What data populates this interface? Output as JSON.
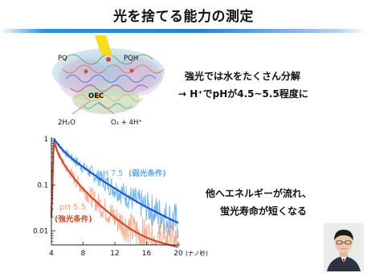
{
  "slide": {
    "title": "光を捨てる能力の測定",
    "note1_line1": "強光では水をたくさん分解",
    "note1_line2": "→ H⁺でpHが4.5~5.5程度に",
    "note2_line1": "他へエネルギーが流れ、",
    "note2_line2": "蛍光寿命が短くなる"
  },
  "diagram": {
    "labels": [
      "PQ",
      "PQH",
      "OEC",
      "2H₂O",
      "O₂ + 4H⁺"
    ],
    "colors": {
      "highlight": "#f0d000"
    }
  },
  "chart_data": {
    "type": "line",
    "xlim": [
      4,
      20
    ],
    "ylim": [
      0.005,
      1
    ],
    "yscale": "log",
    "x_ticks": [
      4,
      8,
      12,
      16,
      20
    ],
    "y_ticks": [
      {
        "value": 1,
        "label": "1"
      },
      {
        "value": 0.1,
        "label": "0.1"
      },
      {
        "value": 0.01,
        "label": "0.01"
      }
    ],
    "x_unit": "(ナノ秒)",
    "series": [
      {
        "name": "pH 7.5 (弱光条件)",
        "color": "#1f55c8",
        "noise_color": "#5aaaf0",
        "x": [
          4.0,
          4.3,
          4.6,
          5.0,
          5.5,
          6,
          7,
          8,
          9,
          10,
          11,
          12,
          13,
          14,
          15,
          16,
          17,
          18,
          19,
          20
        ],
        "y": [
          0.02,
          1.0,
          0.86,
          0.7,
          0.56,
          0.46,
          0.33,
          0.245,
          0.185,
          0.14,
          0.108,
          0.084,
          0.066,
          0.052,
          0.041,
          0.033,
          0.027,
          0.022,
          0.018,
          0.015
        ]
      },
      {
        "name": "pH 5.5 (強光条件)",
        "color": "#d24a2a",
        "noise_color": "#f5a07e",
        "x": [
          4.0,
          4.3,
          4.6,
          5.0,
          5.5,
          6,
          7,
          8,
          9,
          10,
          11,
          12,
          13,
          14,
          15,
          16,
          17,
          18,
          19,
          20
        ],
        "y": [
          0.02,
          0.95,
          0.62,
          0.43,
          0.3,
          0.22,
          0.13,
          0.082,
          0.055,
          0.038,
          0.027,
          0.0195,
          0.0145,
          0.011,
          0.0088,
          0.0072,
          0.0062,
          0.0055,
          0.0049,
          0.0045
        ]
      }
    ],
    "labels": {
      "blue_ph": "pH 7.5",
      "blue_cond": "(弱光条件)",
      "red_ph": "pH 5.5",
      "red_cond": "(強光条件)"
    }
  }
}
